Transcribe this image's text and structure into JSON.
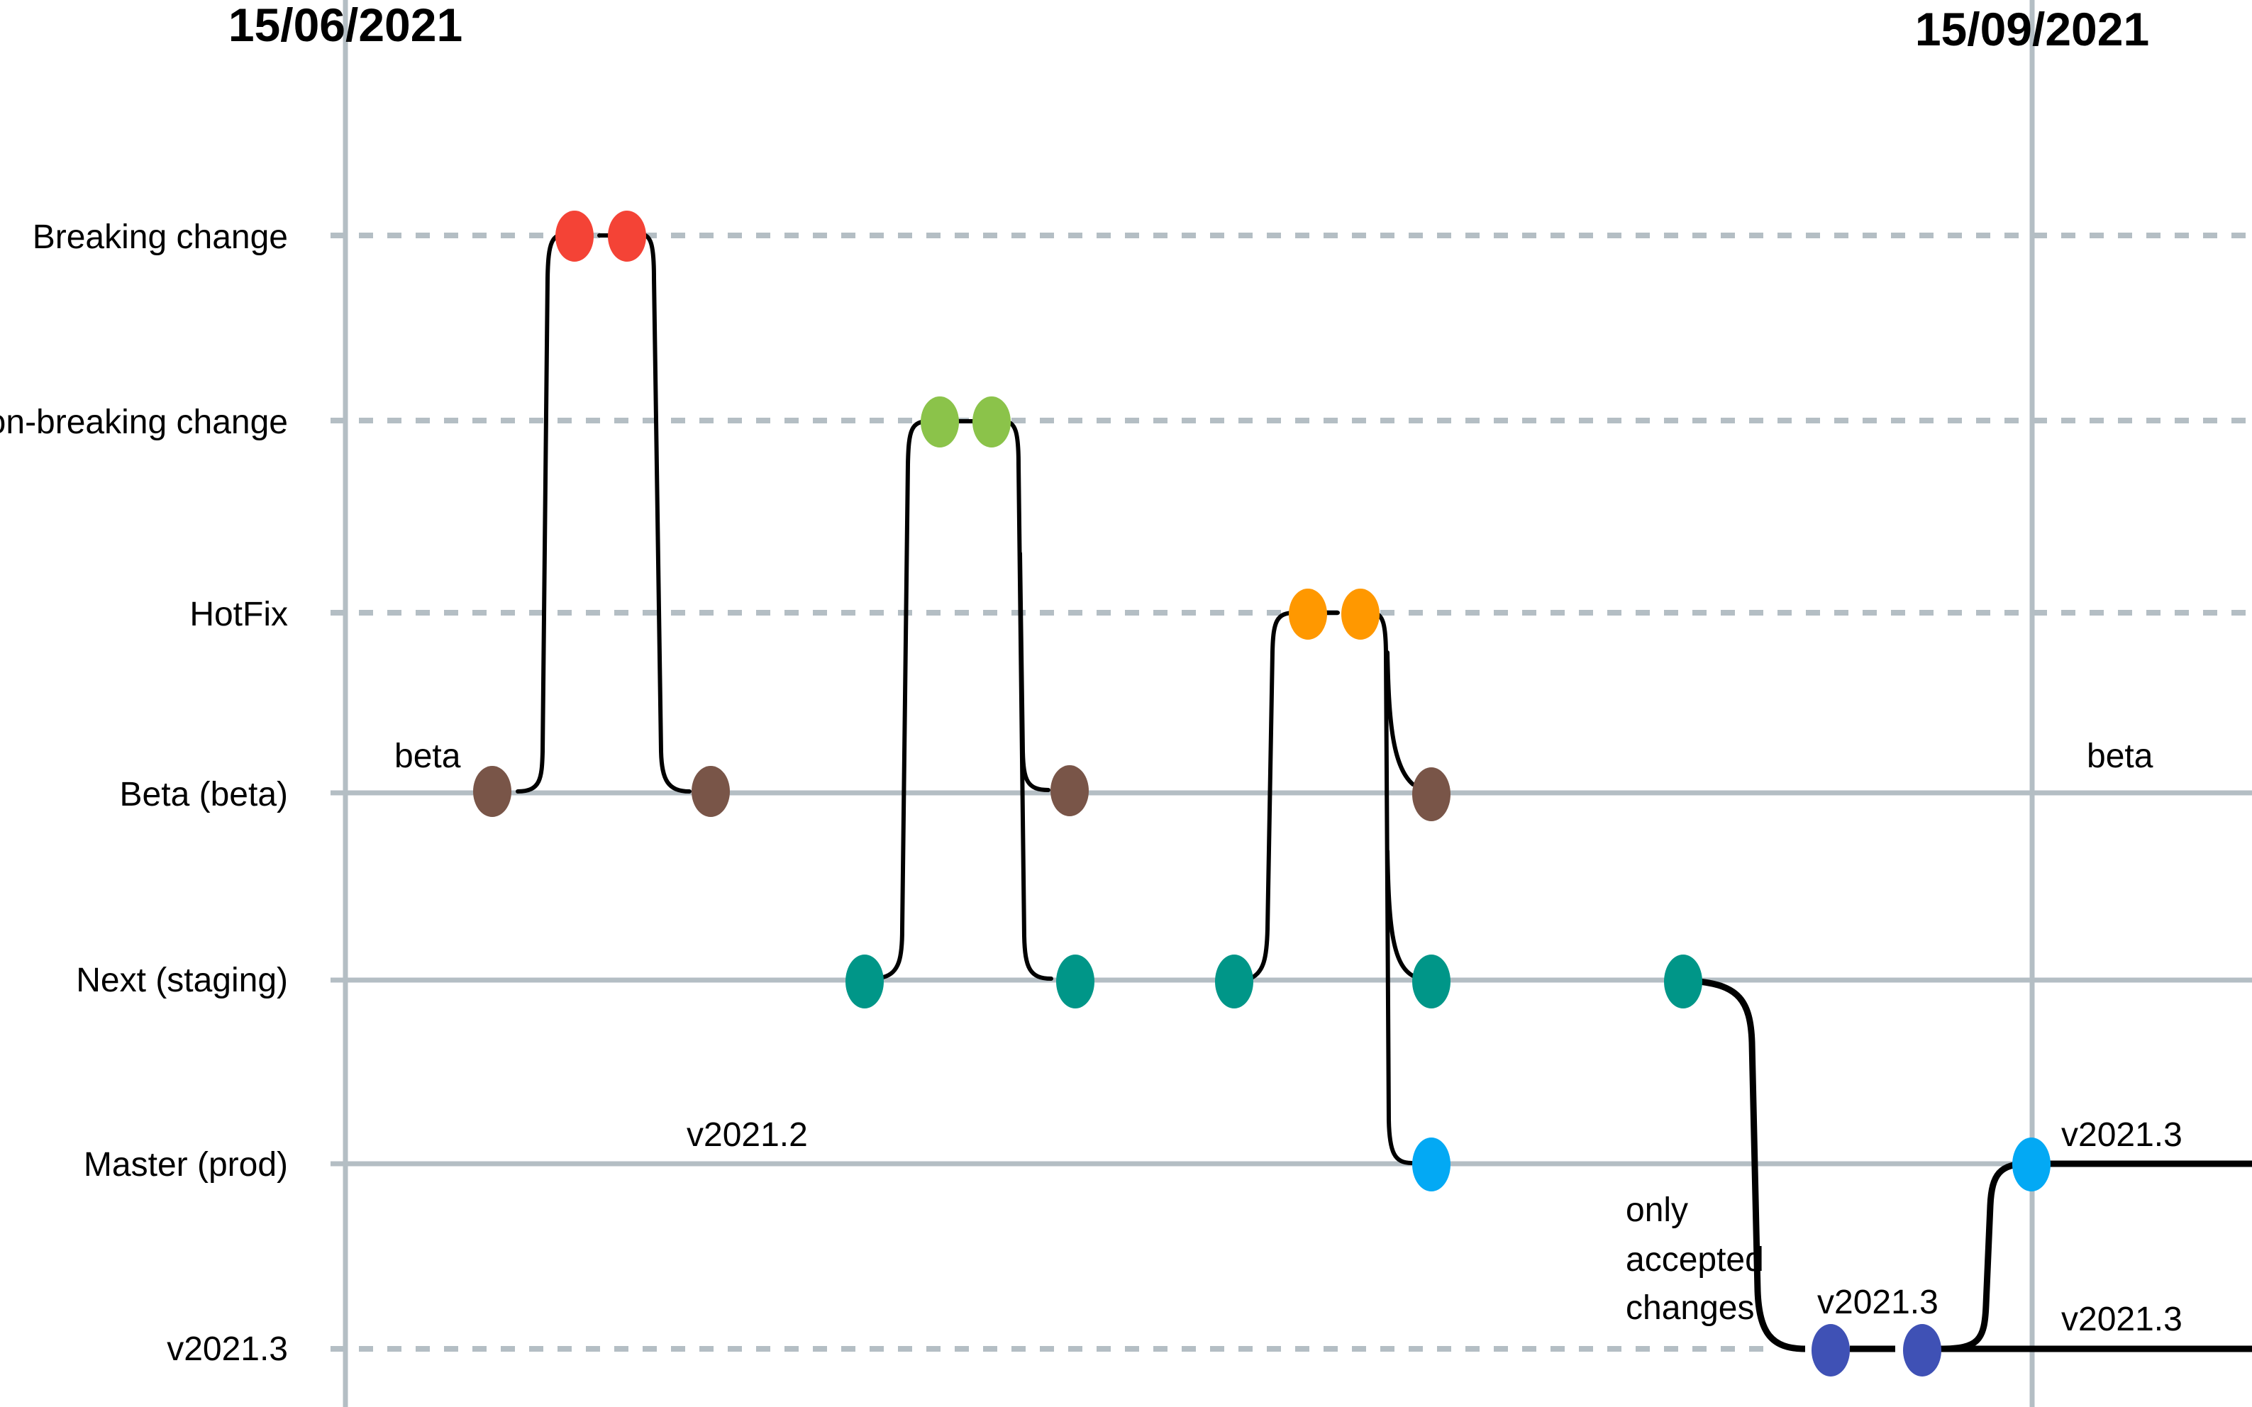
{
  "dates": {
    "start": "15/06/2021",
    "end": "15/09/2021"
  },
  "lanes": [
    {
      "id": "breaking",
      "label": "Breaking change"
    },
    {
      "id": "nonbreaking",
      "label": "Non-breaking change"
    },
    {
      "id": "hotfix",
      "label": "HotFix"
    },
    {
      "id": "beta",
      "label": "Beta (beta)"
    },
    {
      "id": "next",
      "label": "Next (staging)"
    },
    {
      "id": "master",
      "label": "Master (prod)"
    },
    {
      "id": "release",
      "label": "v2021.3"
    }
  ],
  "annotations": {
    "beta_left": "beta",
    "beta_right": "beta",
    "master_version": "v2021.2",
    "only_line1": "only",
    "only_line2": "accepted",
    "only_line3": "changes",
    "release_merge": "v2021.3",
    "master_right": "v2021.3",
    "release_right": "v2021.3"
  },
  "colors": {
    "breaking": "#f44336",
    "nonbreaking": "#8bc34a",
    "hotfix": "#ff9800",
    "beta": "#795548",
    "next": "#009688",
    "master": "#03a9f4",
    "release": "#3f51b5",
    "guide": "#b4bec4"
  }
}
